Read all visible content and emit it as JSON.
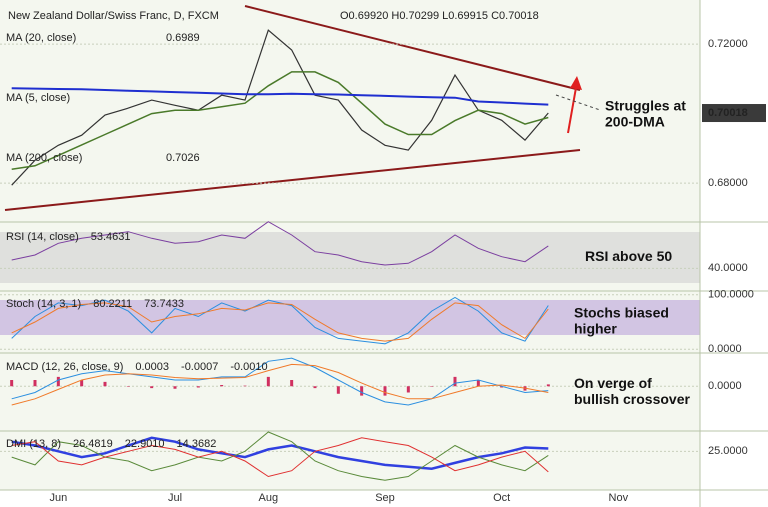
{
  "chart_data": [
    {
      "type": "line",
      "title": "New Zealand Dollar/Swiss Franc, D, FXCM",
      "ohlc": "O0.69920 H0.70299 L0.69915 C0.70018",
      "legend": [
        "MA (20, close)",
        "0.6989",
        "MA (5, close)",
        "MA (200, close)",
        "0.7026"
      ],
      "last_price": 0.70018,
      "annotation": [
        "Struggles at",
        "200-DMA"
      ],
      "ylim": [
        0.6694,
        0.7327
      ],
      "yticks": [
        {
          "value": 0.68,
          "label": "0.68000"
        },
        {
          "value": 0.72,
          "label": "0.72000"
        }
      ],
      "series": [
        {
          "color": "#333333",
          "width": 1.2,
          "values": [
            0.6794,
            0.6866,
            0.6909,
            0.6938,
            0.6996,
            0.7016,
            0.7039,
            0.7024,
            0.701,
            0.7053,
            0.7039,
            0.724,
            0.7183,
            0.7053,
            0.7039,
            0.6953,
            0.6909,
            0.6895,
            0.6981,
            0.7111,
            0.701,
            0.6981,
            0.6924,
            0.70018,
            null,
            null,
            null,
            null,
            null,
            null
          ]
        },
        {
          "color": "#4a7a2a",
          "width": 1.5,
          "values": [
            0.684,
            0.685,
            0.688,
            0.691,
            0.694,
            0.697,
            0.7,
            0.701,
            0.701,
            0.702,
            0.703,
            0.708,
            0.712,
            0.712,
            0.709,
            0.703,
            0.697,
            0.694,
            0.694,
            0.698,
            0.701,
            0.7,
            0.697,
            0.6989,
            null,
            null,
            null,
            null,
            null,
            null
          ]
        },
        {
          "color": "#1f2fd0",
          "width": 2,
          "values": [
            0.7073,
            0.7072,
            0.7071,
            0.707,
            0.7068,
            0.7066,
            0.7064,
            0.7062,
            0.706,
            0.7058,
            0.7056,
            0.7056,
            0.7057,
            0.7056,
            0.7055,
            0.7053,
            0.7051,
            0.7049,
            0.7047,
            0.7046,
            0.7035,
            0.7032,
            0.7029,
            0.7026,
            null,
            null,
            null,
            null,
            null,
            null
          ]
        }
      ]
    },
    {
      "type": "line",
      "legend": [
        "RSI (14, close)",
        "53.4631"
      ],
      "annotation": [
        "RSI above 50"
      ],
      "ylim": [
        27,
        66
      ],
      "yticks": [
        {
          "value": 40,
          "label": "40.0000"
        }
      ],
      "series": [
        {
          "color": "#7b3fa0",
          "width": 1,
          "values": [
            45,
            48,
            55,
            58,
            60,
            62,
            58,
            55,
            56,
            60,
            58,
            68,
            60,
            50,
            48,
            44,
            42,
            43,
            50,
            60,
            52,
            47,
            44,
            53.4631,
            null,
            null,
            null,
            null,
            null,
            null
          ]
        }
      ]
    },
    {
      "type": "line",
      "legend": [
        "Stoch (14, 3, 1)",
        "80.2211",
        "73.7433"
      ],
      "annotation": [
        "Stochs biased",
        "higher"
      ],
      "ylim": [
        -5,
        105
      ],
      "yticks": [
        {
          "value": 0,
          "label": "0.0000"
        },
        {
          "value": 100,
          "label": "100.0000"
        }
      ],
      "series": [
        {
          "color": "#2b8fe0",
          "width": 1,
          "values": [
            20,
            60,
            85,
            80,
            90,
            70,
            30,
            75,
            60,
            85,
            70,
            90,
            80,
            40,
            20,
            15,
            10,
            30,
            70,
            95,
            70,
            30,
            15,
            80.2211,
            null,
            null,
            null,
            null,
            null,
            null
          ]
        },
        {
          "color": "#f07a2a",
          "width": 1,
          "values": [
            30,
            50,
            75,
            82,
            85,
            78,
            50,
            60,
            65,
            75,
            72,
            85,
            82,
            55,
            30,
            20,
            15,
            20,
            55,
            85,
            80,
            45,
            20,
            73.7433,
            null,
            null,
            null,
            null,
            null,
            null
          ]
        }
      ]
    },
    {
      "type": "line",
      "legend": [
        "MACD (12, 26, close, 9)",
        "0.0003",
        "-0.0007",
        "-0.0010"
      ],
      "annotation": [
        "On verge of",
        "bullish crossover"
      ],
      "ylim": [
        -0.007,
        0.005
      ],
      "yticks": [
        {
          "value": 0,
          "label": "0.0000"
        }
      ],
      "series": [
        {
          "type": "bar",
          "color": "#d03060",
          "values": [
            0.001,
            0.001,
            0.0015,
            0.001,
            0.0007,
            0,
            -0.0003,
            -0.0004,
            -0.0002,
            0.0002,
            0.0001,
            0.0015,
            0.001,
            -0.0003,
            -0.0012,
            -0.0015,
            -0.0015,
            -0.001,
            0,
            0.0015,
            0.001,
            -0.0002,
            -0.0007,
            0.0003,
            null,
            null,
            null,
            null,
            null,
            null
          ]
        },
        {
          "color": "#2b8fe0",
          "width": 1,
          "values": [
            -0.002,
            -0.001,
            0.001,
            0.002,
            0.0025,
            0.002,
            0.0015,
            0.001,
            0.001,
            0.0015,
            0.0015,
            0.004,
            0.0045,
            0.003,
            0.001,
            -0.001,
            -0.0025,
            -0.003,
            -0.002,
            0.0005,
            0.001,
            0,
            -0.001,
            -0.0007,
            null,
            null,
            null,
            null,
            null,
            null
          ]
        },
        {
          "color": "#f07a2a",
          "width": 1,
          "values": [
            -0.003,
            -0.002,
            -0.0005,
            0.001,
            0.0018,
            0.002,
            0.0018,
            0.0014,
            0.0012,
            0.0013,
            0.0014,
            0.0025,
            0.0035,
            0.0033,
            0.0022,
            0.0005,
            -0.001,
            -0.002,
            -0.002,
            -0.001,
            0,
            0.0002,
            -0.0003,
            -0.001,
            null,
            null,
            null,
            null,
            null,
            null
          ]
        }
      ]
    },
    {
      "type": "line",
      "legend": [
        "DMI (13, 8)",
        "26.4819",
        "22.9010",
        "14.3682"
      ],
      "ylim": [
        5,
        35
      ],
      "yticks": [
        {
          "value": 25,
          "label": "25.0000"
        }
      ],
      "categories": [
        null,
        null,
        "Jun",
        null,
        null,
        null,
        null,
        "Jul",
        null,
        null,
        null,
        "Aug",
        null,
        null,
        null,
        null,
        "Sep",
        null,
        null,
        null,
        null,
        "Oct",
        null,
        null,
        null,
        null,
        "Nov",
        null,
        null,
        null
      ],
      "series": [
        {
          "color": "#3040e0",
          "width": 2.5,
          "values": [
            30,
            28,
            25,
            22,
            24,
            28,
            32,
            30,
            26,
            24,
            22,
            26,
            28,
            25,
            22,
            20,
            18,
            17,
            16,
            19,
            22,
            24,
            27,
            26.4819,
            null,
            null,
            null,
            null,
            null,
            null
          ]
        },
        {
          "color": "#5a8a3a",
          "width": 1,
          "values": [
            22,
            18,
            30,
            28,
            22,
            20,
            15,
            18,
            22,
            20,
            25,
            35,
            30,
            20,
            15,
            12,
            10,
            12,
            20,
            28,
            22,
            18,
            15,
            22.901,
            null,
            null,
            null,
            null,
            null,
            null
          ]
        },
        {
          "color": "#e03030",
          "width": 1,
          "values": [
            28,
            30,
            20,
            18,
            22,
            25,
            28,
            26,
            22,
            25,
            20,
            12,
            15,
            25,
            28,
            32,
            30,
            28,
            22,
            15,
            18,
            22,
            25,
            14.3682,
            null,
            null,
            null,
            null,
            null,
            null
          ]
        }
      ]
    }
  ]
}
